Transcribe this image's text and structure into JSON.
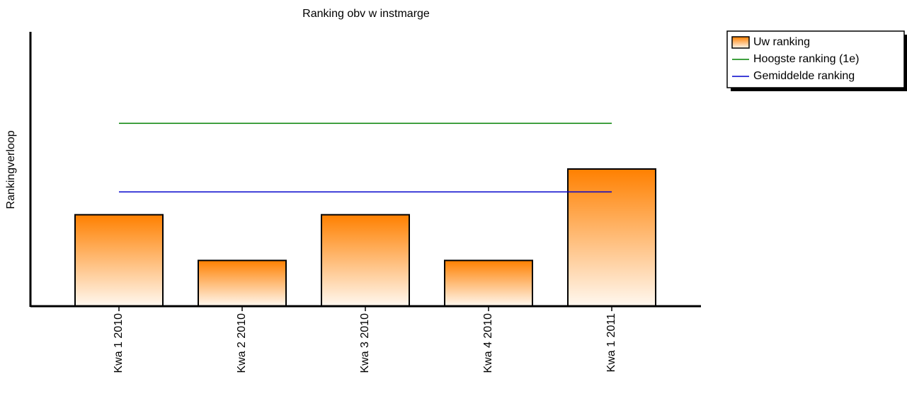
{
  "chart_data": {
    "type": "bar",
    "title": "Ranking obv w instmarge",
    "y_label": "Rankingverloop",
    "categories": [
      "Kwa 1 2010",
      "Kwa 2 2010",
      "Kwa 3 2010",
      "Kwa 4 2010",
      "Kwa 1 2011"
    ],
    "series": [
      {
        "name": "Uw ranking",
        "type": "bar",
        "color": "#ff8000",
        "values": [
          2,
          1,
          2,
          1,
          3
        ]
      },
      {
        "name": "Hoogste ranking (1e)",
        "type": "line",
        "color": "#008000",
        "values": [
          4,
          4,
          4,
          4,
          4
        ]
      },
      {
        "name": "Gemiddelde ranking",
        "type": "line",
        "color": "#0000cc",
        "values": [
          2.5,
          2.5,
          2.5,
          2.5,
          2.5
        ]
      }
    ],
    "ylim": [
      0,
      6
    ],
    "grid": false,
    "legend": "top-right"
  }
}
